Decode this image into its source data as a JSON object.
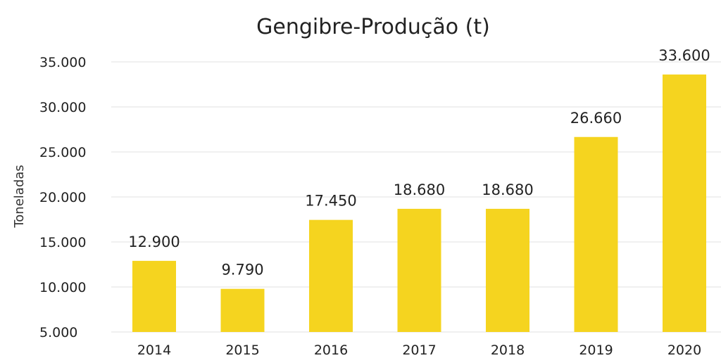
{
  "chart_data": {
    "type": "bar",
    "title": "Gengibre-Produção (t)",
    "xlabel": "",
    "ylabel": "Toneladas",
    "categories": [
      "2014",
      "2015",
      "2016",
      "2017",
      "2018",
      "2019",
      "2020"
    ],
    "values": [
      12900,
      9790,
      17450,
      18680,
      18680,
      26660,
      33600
    ],
    "data_labels": [
      "12.900",
      "9.790",
      "17.450",
      "18.680",
      "18.680",
      "26.660",
      "33.600"
    ],
    "ylim": [
      5000,
      35000
    ],
    "yticks": [
      5000,
      10000,
      15000,
      20000,
      25000,
      30000,
      35000
    ],
    "ytick_labels": [
      "5.000",
      "10.000",
      "15.000",
      "20.000",
      "25.000",
      "30.000",
      "35.000"
    ],
    "grid": true,
    "legend": "none",
    "bar_color": "#F5D41F",
    "grid_color": "#E2E2E2",
    "text_color": "#222222"
  }
}
